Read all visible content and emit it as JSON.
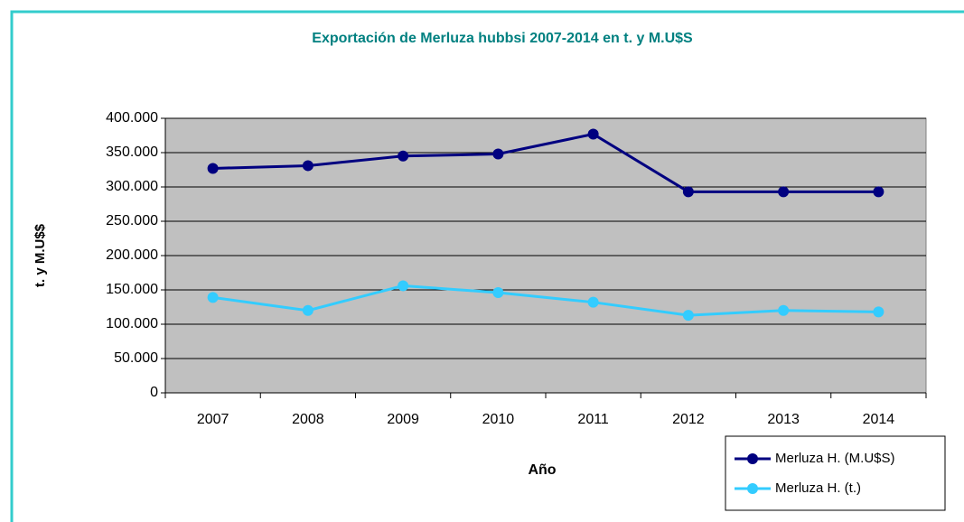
{
  "chart_data": {
    "type": "line",
    "title": "Exportación de Merluza hubbsi  2007-2014 en t. y M.U$S",
    "x_label": "Año",
    "y_label": "t. y M.U$$",
    "categories": [
      "2007",
      "2008",
      "2009",
      "2010",
      "2011",
      "2012",
      "2013",
      "2014"
    ],
    "series": [
      {
        "name": "Merluza H. (M.U$S)",
        "color": "#000080",
        "values": [
          327000,
          331000,
          345000,
          348000,
          377000,
          293000,
          293000,
          293000
        ]
      },
      {
        "name": "Merluza H. (t.)",
        "color": "#33ccff",
        "values": [
          139000,
          120000,
          156000,
          146000,
          132000,
          113000,
          120000,
          118000
        ]
      }
    ],
    "ylim": [
      0,
      400000
    ],
    "yticks": [
      0,
      {
        "value": 50000,
        "label": "50.000"
      },
      {
        "value": 100000,
        "label": "100.000"
      },
      {
        "value": 150000,
        "label": "150.000"
      },
      {
        "value": 200000,
        "label": "200.000"
      },
      {
        "value": 250000,
        "label": "250.000"
      },
      {
        "value": 300000,
        "label": "300.000"
      },
      {
        "value": 350000,
        "label": "350.000"
      },
      {
        "value": 400000,
        "label": "400.000"
      }
    ],
    "grid": true,
    "legend": "bottom-right"
  }
}
